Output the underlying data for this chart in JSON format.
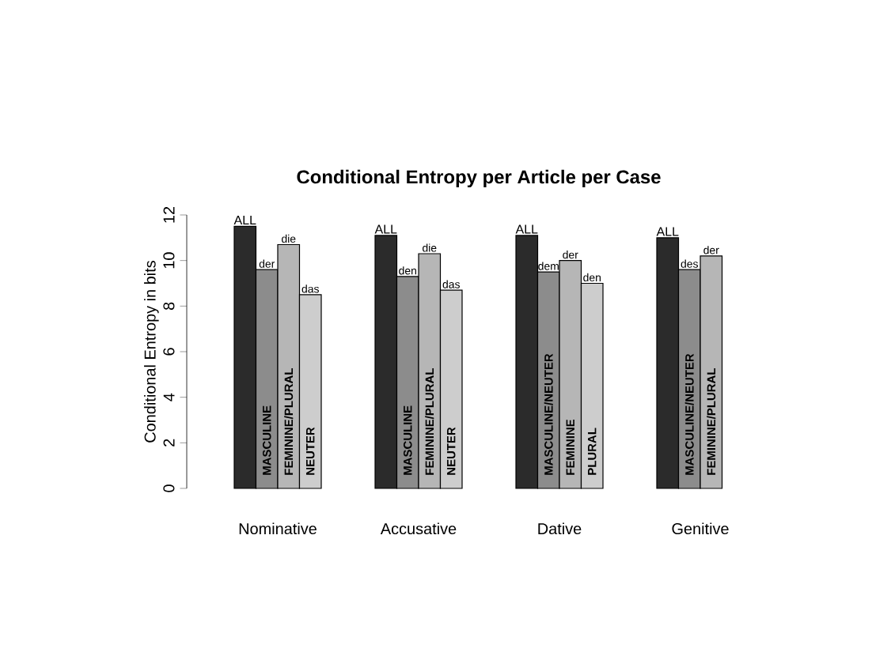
{
  "chart_data": {
    "type": "bar",
    "title": "Conditional Entropy per Article per Case",
    "ylabel": "Conditional Entropy in bits",
    "categories": [
      "Nominative",
      "Accusative",
      "Dative",
      "Genitive"
    ],
    "series": [
      {
        "color": "#2b2b2b",
        "values": [
          11.5,
          11.1,
          11.1,
          11.0
        ],
        "value_labels": [
          "ALL",
          "ALL",
          "ALL",
          "ALL"
        ]
      },
      {
        "color": "#8c8c8c",
        "values": [
          9.6,
          9.3,
          9.5,
          9.6
        ],
        "value_labels": [
          "der",
          "den",
          "dem",
          "des"
        ]
      },
      {
        "color": "#b6b6b6",
        "values": [
          10.7,
          10.3,
          10.0,
          10.2
        ],
        "value_labels": [
          "die",
          "die",
          "der",
          "der"
        ]
      },
      {
        "color": "#cdcdcd",
        "values": [
          8.5,
          8.7,
          9.0,
          null
        ],
        "value_labels": [
          "das",
          "das",
          "den",
          null
        ]
      }
    ],
    "annotations": [
      "MASCULINE",
      "FEMININE/PLURAL",
      "NEUTER",
      "MASCULINE",
      "FEMININE/PLURAL",
      "NEUTER",
      "MASCULINE/NEUTER",
      "FEMININE",
      "PLURAL",
      "MASCULINE/NEUTER",
      "FEMININE/PLURAL"
    ],
    "ylim": [
      0,
      12
    ],
    "yticks": [
      0,
      2,
      4,
      6,
      8,
      10,
      12
    ]
  }
}
